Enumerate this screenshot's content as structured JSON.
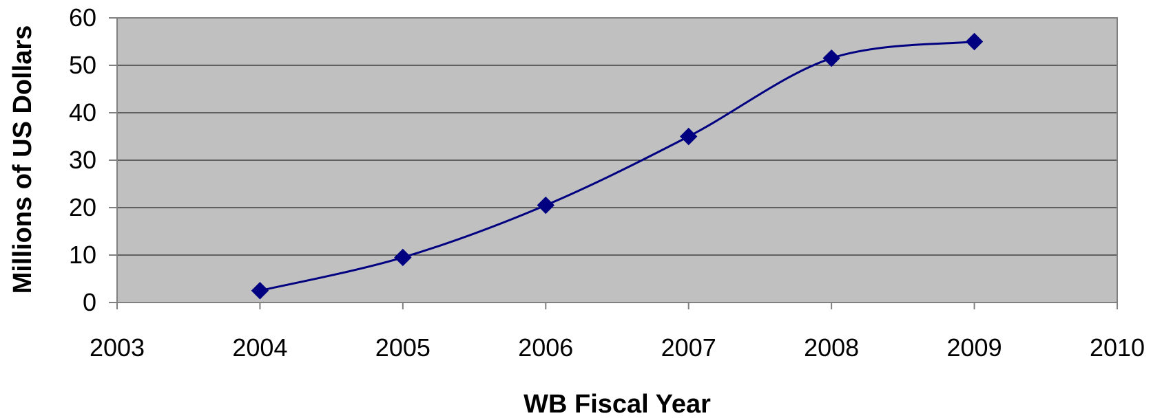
{
  "chart_data": {
    "type": "scatter",
    "title": "",
    "xlabel": "WB Fiscal Year",
    "ylabel": "Millions of US Dollars",
    "xlim": [
      2003,
      2010
    ],
    "ylim": [
      0,
      60
    ],
    "x_ticks": [
      2003,
      2004,
      2005,
      2006,
      2007,
      2008,
      2009,
      2010
    ],
    "y_ticks": [
      0,
      10,
      20,
      30,
      40,
      50,
      60
    ],
    "grid": "horizontal",
    "legend": "none",
    "smooth": true,
    "series": [
      {
        "color": "#000080",
        "marker": "diamond",
        "points": [
          {
            "x": 2004,
            "y": 2.5
          },
          {
            "x": 2005,
            "y": 9.5
          },
          {
            "x": 2006,
            "y": 20.5
          },
          {
            "x": 2007,
            "y": 35
          },
          {
            "x": 2008,
            "y": 51.5
          },
          {
            "x": 2009,
            "y": 55
          }
        ]
      }
    ],
    "colors": {
      "plot_background": "#c0c0c0",
      "gridline": "#000000",
      "axis": "#808080"
    }
  }
}
